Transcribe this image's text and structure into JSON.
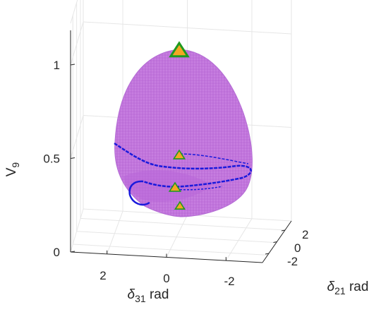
{
  "chart_data": {
    "type": "scatter",
    "title": "",
    "xlabel": {
      "symbol": "δ",
      "sub": "31",
      "unit": " rad"
    },
    "ylabel": {
      "symbol": "δ",
      "sub": "21",
      "unit": " rad"
    },
    "zlabel": {
      "symbol": "V",
      "sub": "9"
    },
    "xticks": [
      "2",
      "0",
      "-2"
    ],
    "yticks": [
      "2",
      "0",
      "-2"
    ],
    "zticks": [
      "0",
      "0.5",
      "1"
    ],
    "zlim": [
      0,
      1.08
    ],
    "grid": true,
    "colors": {
      "surface": "#c77ee0",
      "surface_mesh": "#a650c8",
      "trajectory": "#1a1adc",
      "marker_outer": "#1f9a1f",
      "marker_inner": "#f5a623"
    },
    "series": [
      {
        "kind": "surface",
        "points": [
          [
            0,
            0,
            1.03
          ],
          [
            3.0,
            0,
            0.55
          ],
          [
            -3.0,
            0,
            0.55
          ],
          [
            0,
            3.0,
            0.35
          ],
          [
            0,
            -3.0,
            0.35
          ]
        ]
      },
      {
        "kind": "trajectory",
        "points": [
          [
            2.8,
            0,
            0.57
          ],
          [
            0,
            0,
            0.44
          ],
          [
            -2.9,
            0,
            0.47
          ],
          [
            1.0,
            0,
            0.3
          ]
        ]
      },
      {
        "kind": "markers",
        "points": [
          [
            0,
            0,
            1.02
          ],
          [
            0,
            0,
            0.53
          ],
          [
            0,
            0,
            0.34
          ],
          [
            0,
            0,
            0.24
          ]
        ]
      }
    ]
  }
}
